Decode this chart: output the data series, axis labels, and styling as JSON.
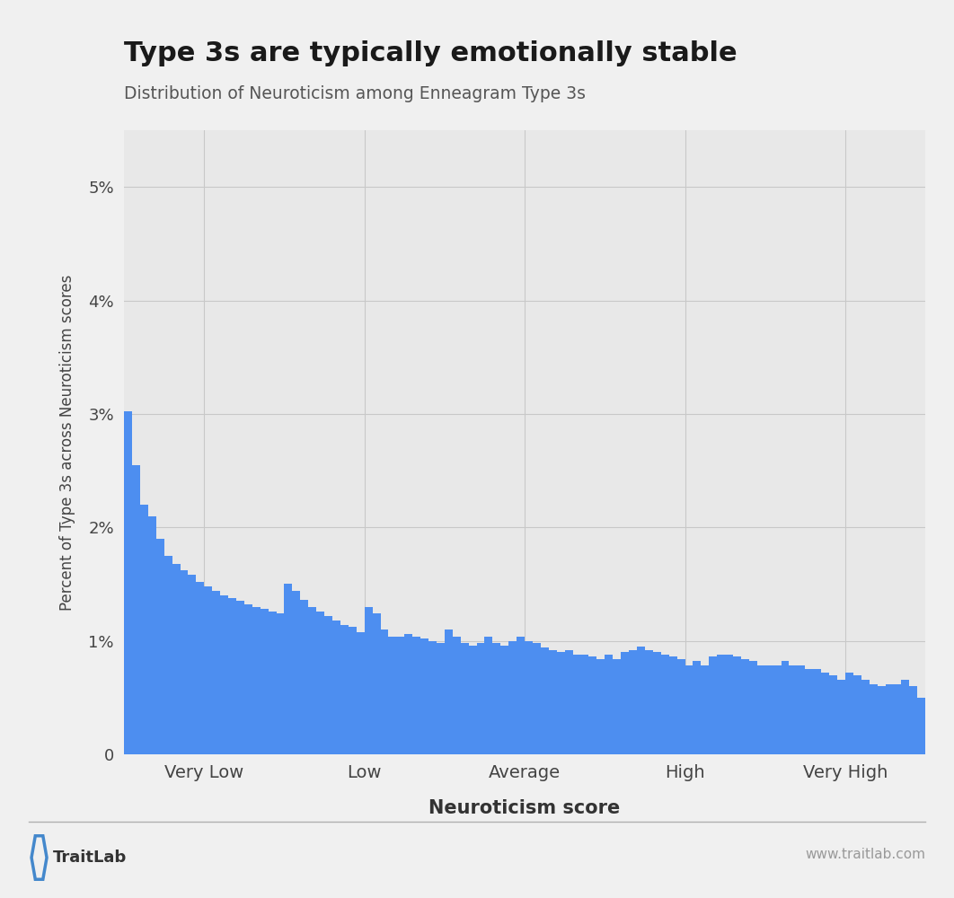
{
  "title": "Type 3s are typically emotionally stable",
  "subtitle": "Distribution of Neuroticism among Enneagram Type 3s",
  "xlabel": "Neuroticism score",
  "ylabel": "Percent of Type 3s across Neuroticism scores",
  "bar_color": "#4d8ef0",
  "background_color": "#f0f0f0",
  "plot_bg_color": "#e8e8e8",
  "xtick_labels": [
    "Very Low",
    "Low",
    "Average",
    "High",
    "Very High"
  ],
  "ytick_labels": [
    "0",
    "1%",
    "2%",
    "3%",
    "4%",
    "5%"
  ],
  "ytick_values": [
    0,
    1,
    2,
    3,
    4,
    5
  ],
  "ylim": [
    0,
    5.5
  ],
  "footer_left": "TraitLab",
  "footer_right": "www.traitlab.com",
  "bar_heights": [
    3.02,
    2.55,
    2.2,
    2.1,
    1.9,
    1.75,
    1.68,
    1.62,
    1.58,
    1.52,
    1.48,
    1.44,
    1.4,
    1.38,
    1.35,
    1.32,
    1.3,
    1.28,
    1.26,
    1.24,
    1.5,
    1.44,
    1.36,
    1.3,
    1.26,
    1.22,
    1.18,
    1.14,
    1.12,
    1.08,
    1.3,
    1.24,
    1.1,
    1.04,
    1.04,
    1.06,
    1.04,
    1.02,
    1.0,
    0.98,
    1.1,
    1.04,
    0.98,
    0.96,
    0.98,
    1.04,
    0.98,
    0.96,
    1.0,
    1.04,
    1.0,
    0.98,
    0.94,
    0.92,
    0.9,
    0.92,
    0.88,
    0.88,
    0.86,
    0.84,
    0.88,
    0.84,
    0.9,
    0.92,
    0.95,
    0.92,
    0.9,
    0.88,
    0.86,
    0.84,
    0.78,
    0.82,
    0.78,
    0.86,
    0.88,
    0.88,
    0.86,
    0.84,
    0.82,
    0.78,
    0.78,
    0.78,
    0.82,
    0.78,
    0.78,
    0.75,
    0.75,
    0.72,
    0.7,
    0.66,
    0.72,
    0.7,
    0.66,
    0.62,
    0.6,
    0.62,
    0.62,
    0.66,
    0.6,
    0.5
  ]
}
